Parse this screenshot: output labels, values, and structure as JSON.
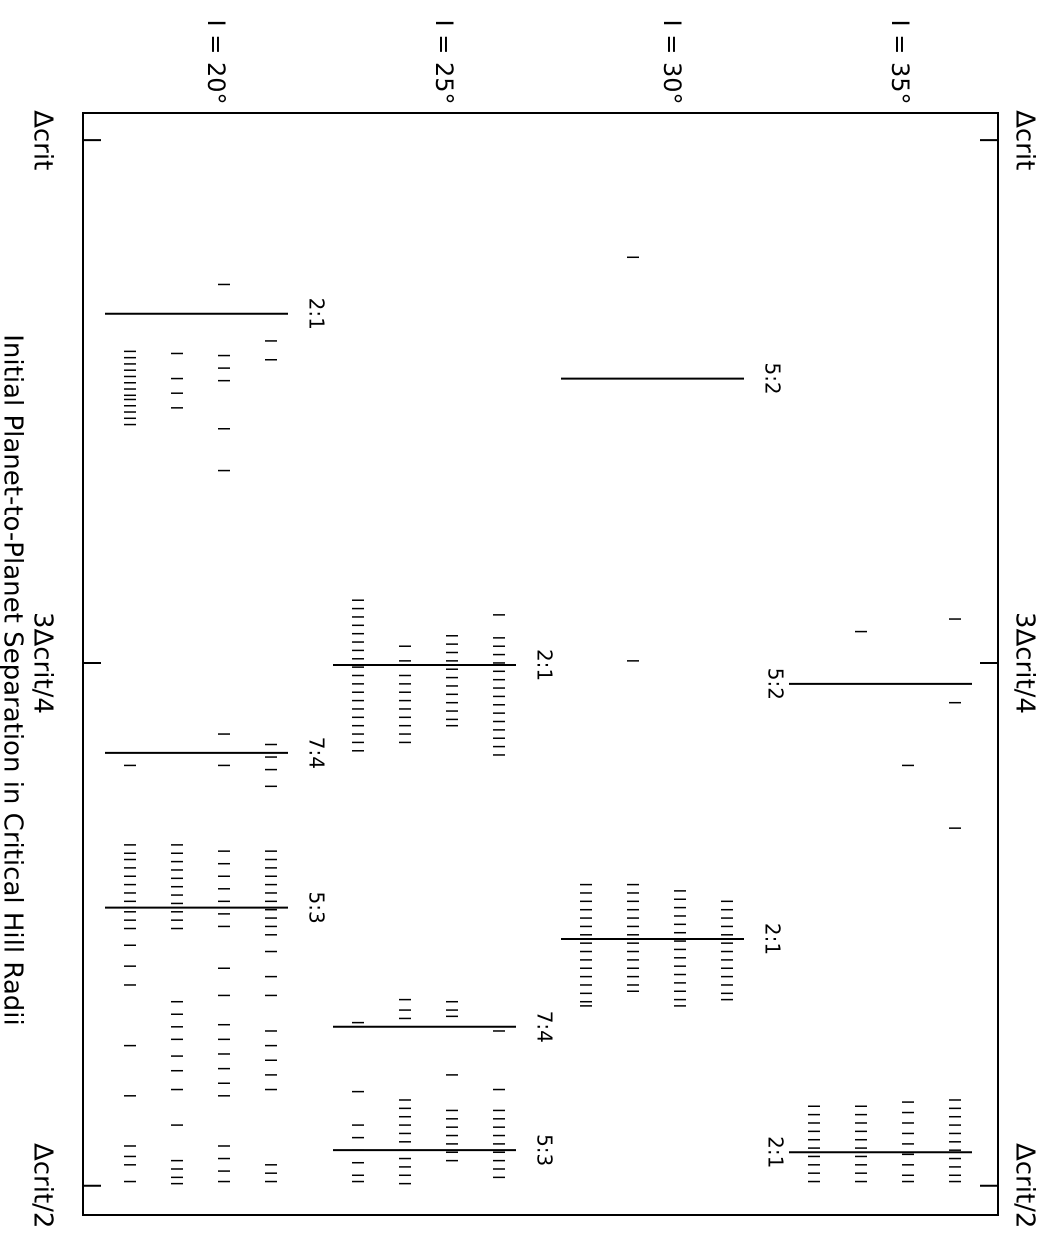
{
  "chart_data": {
    "type": "strip",
    "x_label": "Initial Planet-to-Planet Separation in Critical Hill Radii",
    "ylim": [
      0.486,
      1.013
    ],
    "yticks": [
      {
        "value": 1,
        "label": "Δcrit"
      },
      {
        "value": 0.75,
        "label": "3Δcrit/4"
      },
      {
        "value": 0.5,
        "label": "Δcrit/2"
      }
    ],
    "color": "#000000",
    "panels": [
      {
        "label": "I = 20°",
        "resonances": [
          {
            "label": "2:1",
            "value": 0.917
          },
          {
            "label": "7:4",
            "value": 0.707
          },
          {
            "label": "5:3",
            "value": 0.633
          }
        ],
        "runs": [
          [
            0.899,
            0.896,
            0.893,
            0.89,
            0.887,
            0.884,
            0.881,
            0.878,
            0.876,
            0.873,
            0.87,
            0.867,
            0.864,
            0.701,
            0.663,
            0.659,
            0.656,
            0.652,
            0.648,
            0.644,
            0.64,
            0.636,
            0.633,
            0.631,
            0.627,
            0.623,
            0.615,
            0.605,
            0.596,
            0.567,
            0.543,
            0.519,
            0.514,
            0.51,
            0.502
          ],
          [
            0.898,
            0.886,
            0.879,
            0.872,
            0.663,
            0.659,
            0.655,
            0.651,
            0.647,
            0.643,
            0.639,
            0.635,
            0.631,
            0.627,
            0.623,
            0.588,
            0.582,
            0.576,
            0.57,
            0.562,
            0.555,
            0.546,
            0.529,
            0.512,
            0.508,
            0.504,
            0.501
          ],
          [
            0.931,
            0.897,
            0.891,
            0.885,
            0.862,
            0.842,
            0.716,
            0.701,
            0.66,
            0.654,
            0.648,
            0.642,
            0.636,
            0.63,
            0.624,
            0.604,
            0.591,
            0.577,
            0.57,
            0.563,
            0.556,
            0.549,
            0.543,
            0.519,
            0.513,
            0.507,
            0.502
          ],
          [
            0.904,
            0.895,
            0.711,
            0.705,
            0.699,
            0.691,
            0.66,
            0.656,
            0.652,
            0.648,
            0.644,
            0.64,
            0.636,
            0.632,
            0.628,
            0.624,
            0.62,
            0.612,
            0.6,
            0.591,
            0.574,
            0.567,
            0.56,
            0.553,
            0.546,
            0.51,
            0.506,
            0.502
          ]
        ]
      },
      {
        "label": "I = 25°",
        "resonances": [
          {
            "label": "2:1",
            "value": 0.749
          },
          {
            "label": "7:4",
            "value": 0.576
          },
          {
            "label": "5:3",
            "value": 0.517
          }
        ],
        "runs": [
          [
            0.78,
            0.776,
            0.772,
            0.768,
            0.764,
            0.76,
            0.756,
            0.752,
            0.748,
            0.744,
            0.74,
            0.736,
            0.732,
            0.728,
            0.724,
            0.72,
            0.716,
            0.712,
            0.708,
            0.578,
            0.545,
            0.529,
            0.523,
            0.517,
            0.511,
            0.505,
            0.502
          ],
          [
            0.758,
            0.751,
            0.744,
            0.74,
            0.736,
            0.732,
            0.728,
            0.724,
            0.72,
            0.716,
            0.712,
            0.589,
            0.584,
            0.58,
            0.541,
            0.537,
            0.533,
            0.529,
            0.525,
            0.521,
            0.517,
            0.513,
            0.509,
            0.505,
            0.501
          ],
          [
            0.763,
            0.759,
            0.755,
            0.751,
            0.747,
            0.743,
            0.739,
            0.735,
            0.731,
            0.727,
            0.723,
            0.72,
            0.588,
            0.584,
            0.581,
            0.553,
            0.536,
            0.532,
            0.528,
            0.524,
            0.52,
            0.516,
            0.512
          ],
          [
            0.773,
            0.762,
            0.758,
            0.754,
            0.75,
            0.746,
            0.742,
            0.738,
            0.734,
            0.73,
            0.726,
            0.722,
            0.718,
            0.714,
            0.71,
            0.706,
            0.574,
            0.546,
            0.536,
            0.532,
            0.528,
            0.524,
            0.52,
            0.516,
            0.512,
            0.508,
            0.504
          ]
        ]
      },
      {
        "label": "I = 30°",
        "resonances": [
          {
            "label": "5:2",
            "value": 0.886
          },
          {
            "label": "2:1",
            "value": 0.618
          }
        ],
        "runs": [
          [
            0.644,
            0.64,
            0.636,
            0.632,
            0.628,
            0.624,
            0.62,
            0.616,
            0.612,
            0.608,
            0.604,
            0.6,
            0.596,
            0.592,
            0.588,
            0.586
          ],
          [
            0.944,
            0.751,
            0.644,
            0.64,
            0.636,
            0.632,
            0.628,
            0.624,
            0.62,
            0.616,
            0.612,
            0.608,
            0.604,
            0.6,
            0.596,
            0.593
          ],
          [
            0.641,
            0.637,
            0.633,
            0.629,
            0.625,
            0.621,
            0.617,
            0.613,
            0.609,
            0.605,
            0.601,
            0.597,
            0.593,
            0.589,
            0.586
          ],
          [
            0.636,
            0.632,
            0.628,
            0.624,
            0.62,
            0.616,
            0.612,
            0.608,
            0.604,
            0.6,
            0.596,
            0.592,
            0.589
          ]
        ]
      },
      {
        "label": "I = 35°",
        "resonances": [
          {
            "label": "5:2",
            "value": 0.74
          },
          {
            "label": "2:1",
            "value": 0.516
          }
        ],
        "runs": [
          [
            0.538,
            0.534,
            0.53,
            0.526,
            0.522,
            0.518,
            0.514,
            0.51,
            0.506,
            0.502
          ],
          [
            0.765,
            0.538,
            0.534,
            0.53,
            0.526,
            0.522,
            0.518,
            0.514,
            0.51,
            0.506,
            0.502
          ],
          [
            0.701,
            0.54,
            0.535,
            0.53,
            0.525,
            0.52,
            0.515,
            0.51,
            0.505,
            0.502
          ],
          [
            0.771,
            0.731,
            0.671,
            0.541,
            0.537,
            0.533,
            0.529,
            0.525,
            0.521,
            0.517,
            0.513,
            0.509,
            0.505,
            0.502
          ]
        ]
      }
    ]
  }
}
